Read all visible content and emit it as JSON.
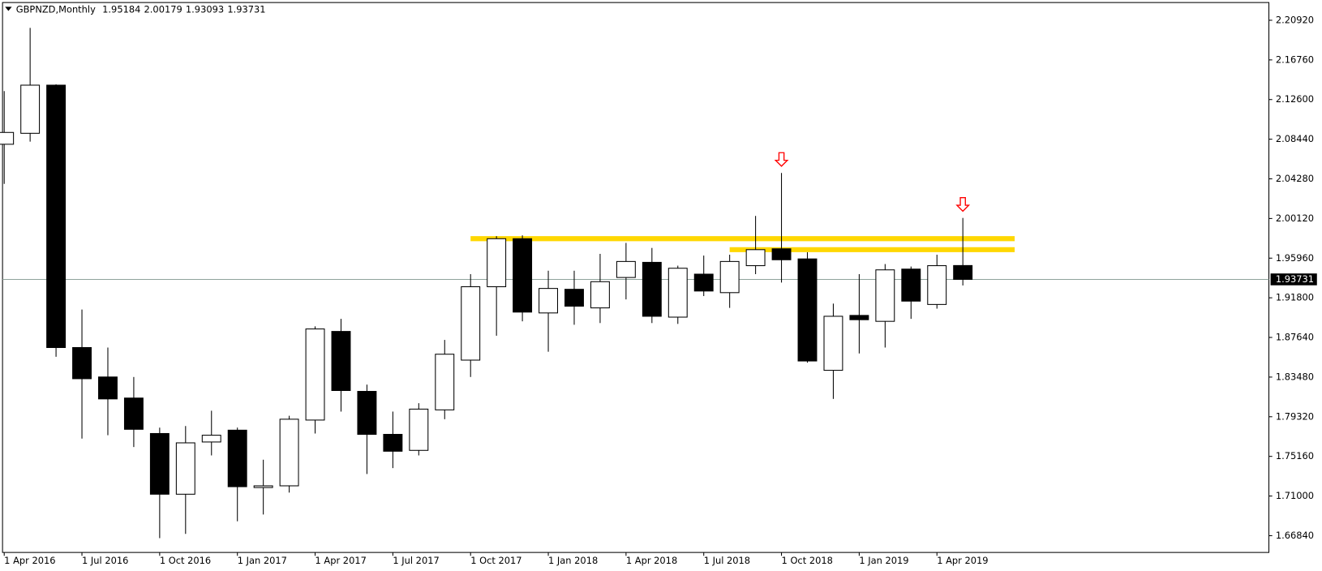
{
  "chart_data": {
    "type": "candlestick",
    "symbol": "GBPNZD,Monthly",
    "categories": [
      "1 Apr 2016",
      null,
      null,
      "1 Jul 2016",
      null,
      null,
      "1 Oct 2016",
      null,
      null,
      "1 Jan 2017",
      null,
      null,
      "1 Apr 2017",
      null,
      null,
      "1 Jul 2017",
      null,
      null,
      "1 Oct 2017",
      null,
      null,
      "1 Jan 2018",
      null,
      null,
      "1 Apr 2018",
      null,
      null,
      "1 Jul 2018",
      null,
      null,
      "1 Oct 2018",
      null,
      null,
      "1 Jan 2019",
      null,
      null,
      "1 Apr 2019",
      null
    ],
    "open": [
      2.0791,
      2.0906,
      2.1411,
      1.8658,
      1.8349,
      1.8128,
      1.7756,
      1.7119,
      1.7667,
      1.7791,
      1.7189,
      1.7207,
      1.7897,
      1.8827,
      1.8198,
      1.7747,
      1.7579,
      1.8004,
      1.8526,
      1.9296,
      1.98,
      1.9021,
      1.9269,
      1.9074,
      1.9393,
      1.9552,
      1.8977,
      1.9428,
      1.9234,
      1.9517,
      1.9694,
      1.9588,
      1.8419,
      1.8995,
      1.8933,
      1.9481,
      1.911,
      1.95184
    ],
    "high": [
      2.1349,
      2.2012,
      2.142,
      1.9057,
      1.8658,
      1.8349,
      1.7818,
      1.7835,
      1.7995,
      1.7818,
      1.7481,
      1.7942,
      1.888,
      1.8959,
      1.8269,
      1.7986,
      1.8074,
      1.8738,
      1.9428,
      1.9827,
      1.9835,
      1.9464,
      1.9464,
      1.9641,
      1.9756,
      1.9703,
      1.9517,
      1.9623,
      1.9632,
      2.0039,
      2.049,
      1.9658,
      1.9119,
      1.9428,
      1.9534,
      1.9508,
      1.9632,
      2.00179
    ],
    "low": [
      2.0375,
      2.0818,
      1.8561,
      1.7703,
      1.7738,
      1.7614,
      1.6658,
      1.6703,
      1.7526,
      1.6835,
      1.6906,
      1.7136,
      1.7756,
      1.7986,
      1.7331,
      1.7393,
      1.7526,
      1.7906,
      1.8349,
      1.8782,
      1.8933,
      1.8614,
      1.8897,
      1.8915,
      1.9163,
      1.8915,
      1.8906,
      1.9198,
      1.9074,
      1.9428,
      1.934,
      1.8499,
      1.8119,
      1.8596,
      1.8658,
      1.8959,
      1.9066,
      1.93093
    ],
    "close": [
      2.0915,
      2.1411,
      1.8658,
      1.8331,
      1.8119,
      1.78,
      1.7119,
      1.7658,
      1.7738,
      1.7198,
      1.7207,
      1.7906,
      1.8853,
      1.8207,
      1.7747,
      1.757,
      1.8012,
      1.8588,
      1.9296,
      1.98,
      1.903,
      1.9278,
      1.9092,
      1.9349,
      1.9561,
      1.8986,
      1.949,
      1.9251,
      1.9561,
      1.9685,
      1.9579,
      1.8517,
      1.8986,
      1.895,
      1.9473,
      1.9145,
      1.9517,
      1.93731
    ],
    "up_color": "#ffffff",
    "down_color": "#000000",
    "price_line_color": "#8fa39c",
    "levels": [
      {
        "value": 1.98,
        "start": 18
      },
      {
        "value": 1.9685,
        "start": 28
      }
    ],
    "level_color": "#ffd700",
    "arrows": [
      30,
      37
    ],
    "arrow_color": "#ff0000",
    "ylim": [
      1.6508,
      2.2278
    ],
    "yticks": [
      {
        "value": 2.2092,
        "label": "2.20920"
      },
      {
        "value": 2.1676,
        "label": "2.16760"
      },
      {
        "value": 2.126,
        "label": "2.12600"
      },
      {
        "value": 2.0844,
        "label": "2.08440"
      },
      {
        "value": 2.0428,
        "label": "2.04280"
      },
      {
        "value": 2.0012,
        "label": "2.00120"
      },
      {
        "value": 1.9596,
        "label": "1.95960"
      },
      {
        "value": 1.918,
        "label": "1.91800"
      },
      {
        "value": 1.8764,
        "label": "1.87640"
      },
      {
        "value": 1.8348,
        "label": "1.83480"
      },
      {
        "value": 1.7932,
        "label": "1.79320"
      },
      {
        "value": 1.7516,
        "label": "1.75160"
      },
      {
        "value": 1.71,
        "label": "1.71000"
      },
      {
        "value": 1.6684,
        "label": "1.66840"
      }
    ]
  }
}
